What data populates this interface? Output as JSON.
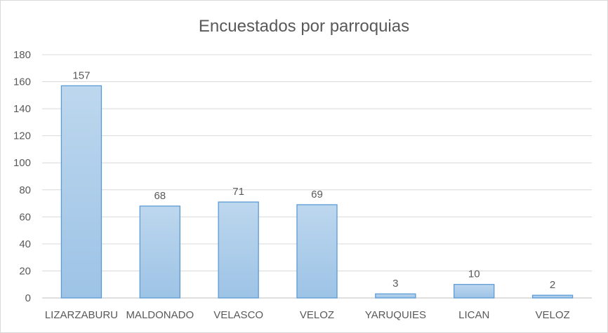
{
  "chart_data": {
    "type": "bar",
    "title": "Encuestados  por  parroquias",
    "categories": [
      "LIZARZABURU",
      "MALDONADO",
      "VELASCO",
      "VELOZ",
      "YARUQUIES",
      "LICAN",
      "VELOZ"
    ],
    "values": [
      157,
      68,
      71,
      69,
      3,
      10,
      2
    ],
    "ylim": [
      0,
      180
    ],
    "yticks": [
      0,
      20,
      40,
      60,
      80,
      100,
      120,
      140,
      160,
      180
    ],
    "grid": true,
    "legend": "none",
    "colors": {
      "bar_top": "#bdd7ee",
      "bar_bottom": "#9dc3e6",
      "bar_stroke": "#5b9bd5"
    }
  }
}
